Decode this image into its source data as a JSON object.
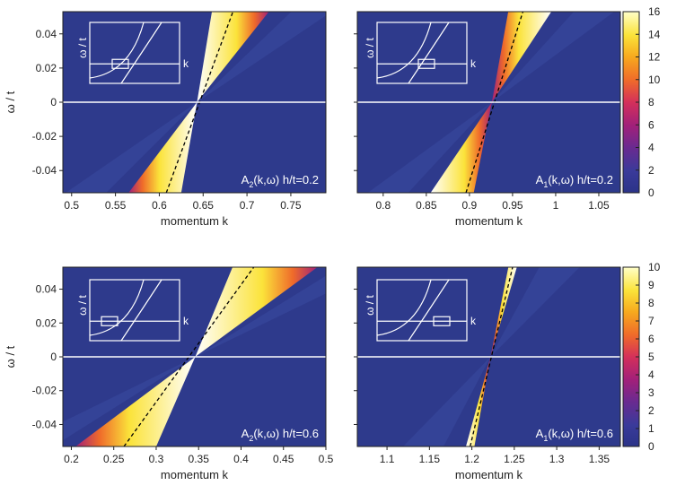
{
  "chart_data": [
    {
      "type": "heatmap",
      "panel": "top-left",
      "title": "",
      "label_main": "A",
      "label_sub": "2",
      "label_rest": "(k,ω) h/t=0.2",
      "xlabel": "momentum k",
      "ylabel": "ω / t",
      "xlim": [
        0.49,
        0.79
      ],
      "ylim": [
        -0.053,
        0.053
      ],
      "xticks": [
        "0.5",
        "0.55",
        "0.6",
        "0.65",
        "0.7",
        "0.75"
      ],
      "xtick_values": [
        0.5,
        0.55,
        0.6,
        0.65,
        0.7,
        0.75
      ],
      "yticks": [
        "0.04",
        "0.02",
        "0",
        "-0.02",
        "-0.04"
      ],
      "ytick_values": [
        0.04,
        0.02,
        0,
        -0.02,
        -0.04
      ],
      "k0": 0.643,
      "white_line_omega": 0,
      "dispersion_dashed": {
        "k_at_bottom": 0.608,
        "k_at_top": 0.684
      },
      "band_edges": {
        "k_at_bottom": [
          0.565,
          0.625
        ],
        "k_at_top": [
          0.66,
          0.725
        ]
      },
      "inset_label": "k",
      "inset_ylabel": "ω / t",
      "inset_box": "center-left"
    },
    {
      "type": "heatmap",
      "panel": "top-right",
      "label_main": "A",
      "label_sub": "1",
      "label_rest": "(k,ω) h/t=0.2",
      "xlabel": "momentum k",
      "ylabel": "",
      "xlim": [
        0.77,
        1.075
      ],
      "ylim": [
        -0.053,
        0.053
      ],
      "xticks": [
        "0.8",
        "0.85",
        "0.9",
        "0.95",
        "1",
        "1.05"
      ],
      "xtick_values": [
        0.8,
        0.85,
        0.9,
        0.95,
        1.0,
        1.05
      ],
      "k0": 0.926,
      "white_line_omega": 0,
      "dispersion_dashed": {
        "k_at_bottom": 0.896,
        "k_at_top": 0.962
      },
      "band_edges": {
        "k_at_bottom": [
          0.855,
          0.905
        ],
        "k_at_top": [
          0.945,
          0.995
        ]
      },
      "inset_label": "k",
      "inset_ylabel": "ω / t",
      "inset_box": "center"
    },
    {
      "type": "heatmap",
      "panel": "bottom-left",
      "label_main": "A",
      "label_sub": "2",
      "label_rest": "(k,ω) h/t=0.6",
      "xlabel": "momentum k",
      "ylabel": "ω / t",
      "xlim": [
        0.19,
        0.5
      ],
      "ylim": [
        -0.053,
        0.053
      ],
      "xticks": [
        "0.2",
        "0.25",
        "0.3",
        "0.35",
        "0.4",
        "0.45",
        "0.5"
      ],
      "xtick_values": [
        0.2,
        0.25,
        0.3,
        0.35,
        0.4,
        0.45,
        0.5
      ],
      "yticks": [
        "0.04",
        "0.02",
        "0",
        "-0.02",
        "-0.04"
      ],
      "ytick_values": [
        0.04,
        0.02,
        0,
        -0.02,
        -0.04
      ],
      "k0": 0.346,
      "white_line_omega": 0,
      "dispersion_dashed": {
        "k_at_bottom": 0.262,
        "k_at_top": 0.415
      },
      "band_edges": {
        "k_at_bottom": [
          0.205,
          0.3
        ],
        "k_at_top": [
          0.39,
          0.49
        ]
      },
      "inset_label": "k",
      "inset_ylabel": "ω / t",
      "inset_box": "left"
    },
    {
      "type": "heatmap",
      "panel": "bottom-right",
      "label_main": "A",
      "label_sub": "1",
      "label_rest": "(k,ω) h/t=0.6",
      "xlabel": "momentum k",
      "ylabel": "",
      "xlim": [
        1.065,
        1.375
      ],
      "ylim": [
        -0.053,
        0.053
      ],
      "xticks": [
        "1.1",
        "1.15",
        "1.2",
        "1.25",
        "1.3",
        "1.35"
      ],
      "xtick_values": [
        1.1,
        1.15,
        1.2,
        1.25,
        1.3,
        1.35
      ],
      "k0": 1.222,
      "white_line_omega": 0,
      "dispersion_dashed": {
        "k_at_bottom": 1.198,
        "k_at_top": 1.248
      },
      "band_edges": {
        "k_at_bottom": [
          1.193,
          1.203
        ],
        "k_at_top": [
          1.243,
          1.253
        ]
      },
      "inset_label": "k",
      "inset_ylabel": "ω / t",
      "inset_box": "right"
    }
  ],
  "colorbars": [
    {
      "position": "top",
      "ticks": [
        "16",
        "14",
        "12",
        "10",
        "8",
        "6",
        "4",
        "2",
        "0"
      ],
      "tick_values": [
        16,
        14,
        12,
        10,
        8,
        6,
        4,
        2,
        0
      ],
      "range": [
        0,
        16
      ]
    },
    {
      "position": "bottom",
      "ticks": [
        "10",
        "9",
        "8",
        "7",
        "6",
        "5",
        "4",
        "3",
        "2",
        "1",
        "0"
      ],
      "tick_values": [
        10,
        9,
        8,
        7,
        6,
        5,
        4,
        3,
        2,
        1,
        0
      ],
      "range": [
        0,
        10
      ]
    }
  ],
  "colors": {
    "background": "#2e3a8c",
    "colormap": [
      "#2b3388",
      "#3a3a9a",
      "#6a2a90",
      "#a1207a",
      "#d4305a",
      "#ef6a2a",
      "#f7a91e",
      "#fbe33a",
      "#ffffc8",
      "#ffffff"
    ],
    "white_line": "#ffffff",
    "dashed_line": "#000000"
  }
}
